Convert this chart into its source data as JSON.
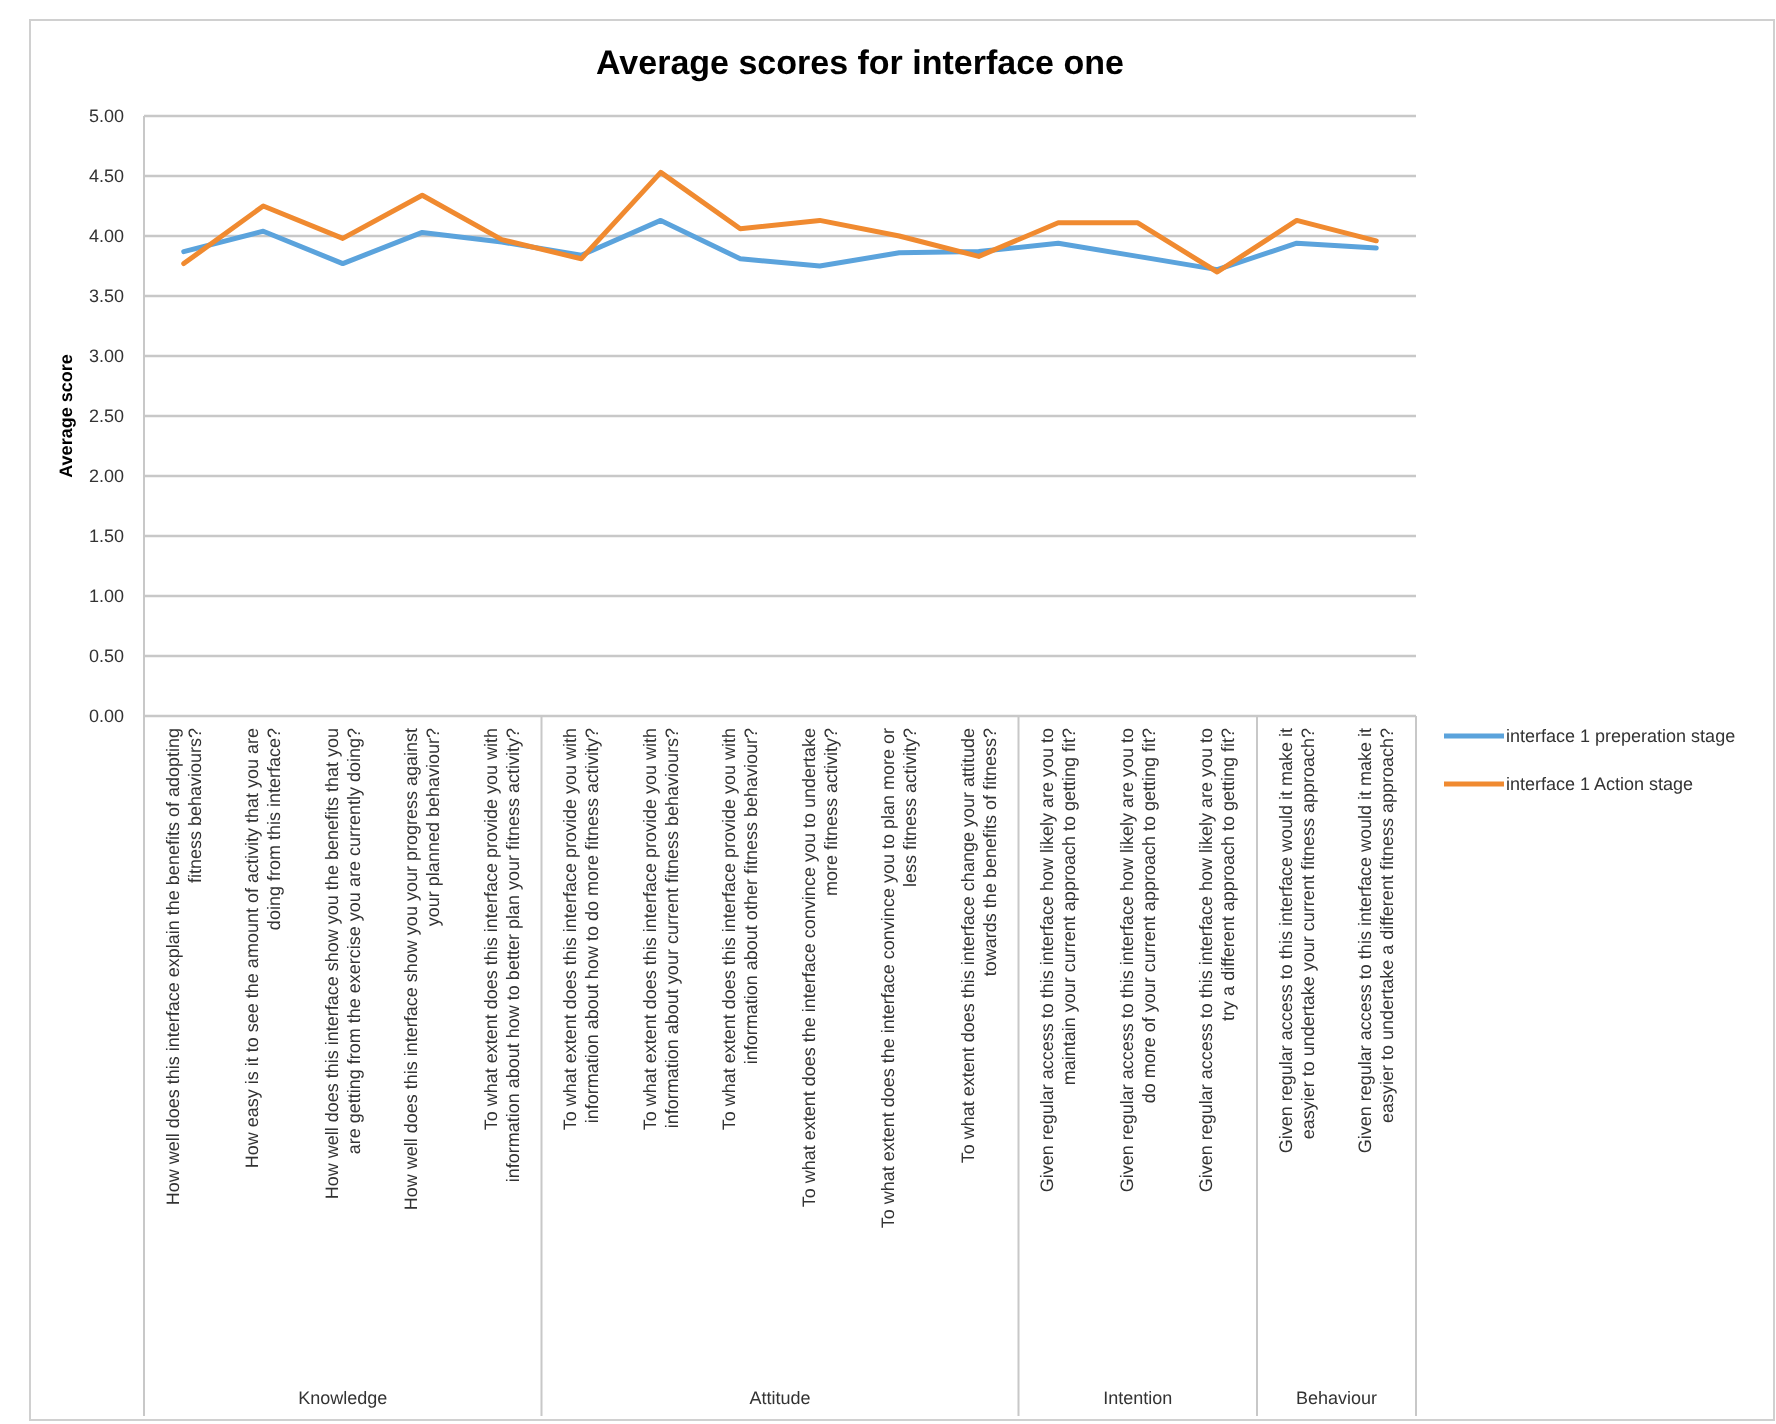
{
  "chart_data": {
    "type": "line",
    "title": "Average scores for interface one",
    "ylabel": "Average score",
    "categories": [
      "How well does this interface explain the benefits of adopting fitness behaviours?",
      "How easy is it to see the amount of activity that you are doing from this interface?",
      "How well does this interface show you the benefits that you are getting from the exercise you are currently doing?",
      "How well does this interface show you your progress against your planned behaviour?",
      "To what extent does this interface provide you with information about how to better plan your fitness activity?",
      "To what extent does this interface provide you with information about how to do more fitness activity?",
      "To what extent does this interface provide you with information about your current fitness behaviours?",
      "To what extent does this interface provide you with information about other fitness behaviour?",
      "To what extent does the interface convince you to undertake more fitness activity?",
      "To what extent does the interface convince you to plan more or less fitness activity?",
      "To what extent does this interface change your attitude towards the benefits of fitness?",
      "Given regular access to this interface how likely are you to maintain your current approach to getting fit?",
      "Given regular access to this interface how likely are you to do more of your current approach to getting fit?",
      "Given regular access to this interface how likely are you to try a different approach to getting fit?",
      "Given regular access to this interface would it make it easyier to undertake your current fitness approach?",
      "Given regular access to this interface would it make it easyier to undertake a different fitness approach?"
    ],
    "annotations": [
      "Knowledge",
      "Attitude",
      "Intention",
      "Behaviour"
    ],
    "series": [
      {
        "name": "interface 1 preperation stage",
        "color": "#5ba3dc",
        "values": [
          3.87,
          4.04,
          3.77,
          4.03,
          3.95,
          3.84,
          4.13,
          3.81,
          3.75,
          3.86,
          3.87,
          3.94,
          3.83,
          3.72,
          3.94,
          3.9
        ]
      },
      {
        "name": "interface 1 Action stage",
        "color": "#f08a30",
        "values": [
          3.77,
          4.25,
          3.98,
          4.34,
          3.97,
          3.81,
          4.53,
          4.06,
          4.13,
          4.0,
          3.83,
          4.11,
          4.11,
          3.7,
          4.13,
          3.96
        ]
      }
    ],
    "ylim": [
      0,
      5
    ],
    "yticks": [
      {
        "value": 0,
        "label": "0.00"
      },
      {
        "value": 0.5,
        "label": "0.50"
      },
      {
        "value": 1,
        "label": "1.00"
      },
      {
        "value": 1.5,
        "label": "1.50"
      },
      {
        "value": 2,
        "label": "2.00"
      },
      {
        "value": 2.5,
        "label": "2.50"
      },
      {
        "value": 3,
        "label": "3.00"
      },
      {
        "value": 3.5,
        "label": "3.50"
      },
      {
        "value": 4,
        "label": "4.00"
      },
      {
        "value": 4.5,
        "label": "4.50"
      },
      {
        "value": 5,
        "label": "5.00"
      }
    ],
    "grid": "y",
    "legend": "right",
    "marker": "none",
    "line_style": "solid"
  }
}
